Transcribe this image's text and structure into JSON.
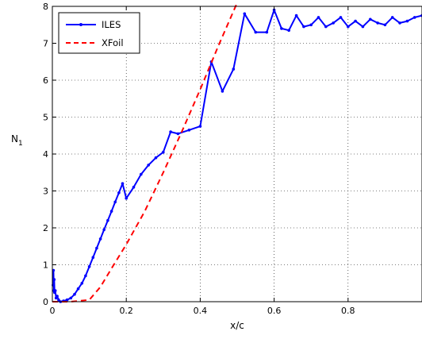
{
  "chart_data": {
    "type": "line",
    "title": "",
    "xlabel": "x/c",
    "ylabel": "N",
    "ylabel_subscript": "1",
    "xlim": [
      0,
      1
    ],
    "ylim": [
      0,
      8
    ],
    "xticks": [
      0,
      0.2,
      0.4,
      0.6,
      0.8
    ],
    "xtick_labels": [
      "0",
      "0.2",
      "0.4",
      "0.6",
      "0.8"
    ],
    "yticks": [
      0,
      1,
      2,
      3,
      4,
      5,
      6,
      7,
      8
    ],
    "ytick_labels": [
      "0",
      "1",
      "2",
      "3",
      "4",
      "5",
      "6",
      "7",
      "8"
    ],
    "grid": true,
    "legend_position": "top-left",
    "series": [
      {
        "name": "ILES",
        "color": "#0000ff",
        "style": "solid-with-point-markers",
        "x": [
          0.002,
          0.003,
          0.004,
          0.005,
          0.006,
          0.008,
          0.01,
          0.013,
          0.017,
          0.022,
          0.03,
          0.04,
          0.05,
          0.06,
          0.07,
          0.08,
          0.09,
          0.1,
          0.11,
          0.12,
          0.13,
          0.14,
          0.15,
          0.16,
          0.17,
          0.18,
          0.19,
          0.2,
          0.22,
          0.24,
          0.26,
          0.28,
          0.3,
          0.32,
          0.34,
          0.37,
          0.4,
          0.43,
          0.46,
          0.49,
          0.52,
          0.55,
          0.58,
          0.6,
          0.62,
          0.64,
          0.66,
          0.68,
          0.7,
          0.72,
          0.74,
          0.76,
          0.78,
          0.8,
          0.82,
          0.84,
          0.86,
          0.88,
          0.9,
          0.92,
          0.94,
          0.96,
          0.98,
          1.0
        ],
        "y": [
          0.45,
          0.85,
          0.3,
          0.6,
          0.25,
          0.3,
          0.1,
          0.15,
          0.05,
          0.0,
          0.02,
          0.05,
          0.1,
          0.2,
          0.35,
          0.5,
          0.7,
          0.95,
          1.2,
          1.45,
          1.7,
          1.95,
          2.2,
          2.45,
          2.7,
          2.95,
          3.2,
          2.8,
          3.1,
          3.45,
          3.7,
          3.9,
          4.05,
          4.6,
          4.55,
          4.65,
          4.75,
          6.5,
          5.7,
          6.3,
          7.8,
          7.3,
          7.3,
          7.9,
          7.4,
          7.35,
          7.75,
          7.45,
          7.5,
          7.7,
          7.45,
          7.55,
          7.7,
          7.45,
          7.6,
          7.45,
          7.65,
          7.55,
          7.5,
          7.7,
          7.55,
          7.6,
          7.7,
          7.75
        ]
      },
      {
        "name": "XFoil",
        "color": "#ff0000",
        "style": "dashed",
        "x": [
          0.0,
          0.05,
          0.1,
          0.13,
          0.16,
          0.2,
          0.25,
          0.3,
          0.35,
          0.4,
          0.45,
          0.5
        ],
        "y": [
          0.0,
          0.0,
          0.05,
          0.4,
          0.9,
          1.55,
          2.45,
          3.5,
          4.6,
          5.75,
          6.95,
          8.1
        ]
      }
    ]
  }
}
